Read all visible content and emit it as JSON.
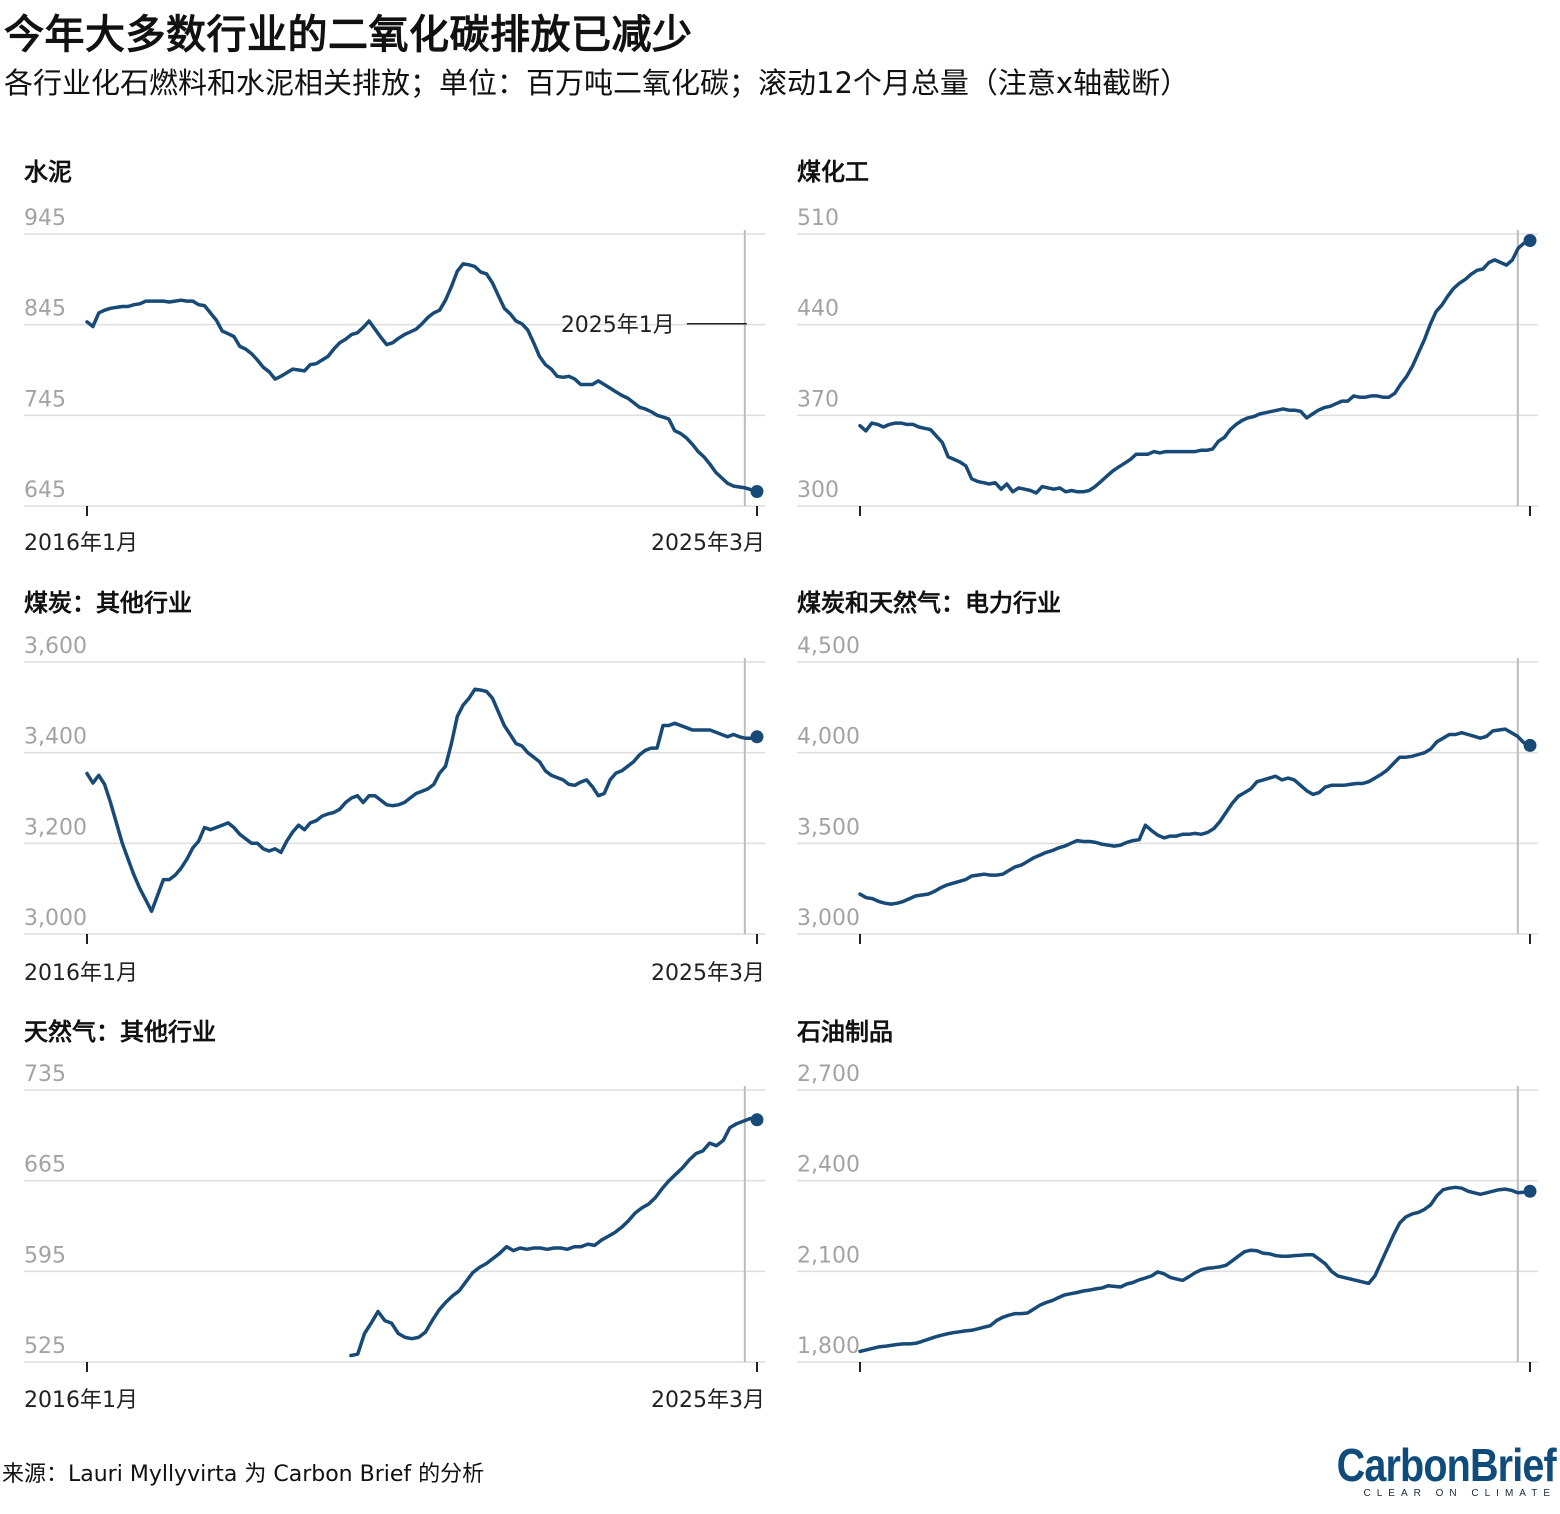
{
  "title": "今年大多数行业的二氧化碳排放已减少",
  "subtitle": "各行业化石燃料和水泥相关排放；单位：百万吨二氧化碳；滚动12个月总量（注意x轴截断）",
  "source": "来源：Lauri Myllyvirta 为 Carbon Brief 的分析",
  "logo": {
    "text": "CarbonBrief",
    "tagline": "CLEAR ON CLIMATE"
  },
  "colors": {
    "line": "#174a76",
    "grid": "#dedede",
    "tick_label": "#a3a3a3",
    "marker_line": "#bdbdbd"
  },
  "chart_data": [
    {
      "type": "line",
      "title": "水泥",
      "x_range": [
        "2016-01",
        "2025-03"
      ],
      "x_tick_labels": [
        "2016年1月",
        "2025年3月"
      ],
      "y_ticks": [
        "945",
        "845",
        "745",
        "645"
      ],
      "ylim": [
        645,
        945
      ],
      "vline": "2025-01",
      "annotation": "2025年1月",
      "values": [
        848,
        843,
        858,
        861,
        863,
        864,
        865,
        865,
        867,
        868,
        871,
        871,
        871,
        871,
        870,
        871,
        872,
        871,
        871,
        867,
        866,
        858,
        850,
        838,
        835,
        832,
        821,
        818,
        813,
        806,
        798,
        793,
        785,
        788,
        792,
        796,
        795,
        794,
        801,
        802,
        806,
        810,
        818,
        825,
        829,
        834,
        836,
        842,
        849,
        840,
        831,
        823,
        825,
        830,
        834,
        837,
        840,
        846,
        853,
        858,
        861,
        872,
        887,
        904,
        912,
        911,
        909,
        903,
        901,
        891,
        877,
        863,
        857,
        849,
        846,
        839,
        825,
        810,
        801,
        796,
        788,
        787,
        788,
        785,
        779,
        779,
        779,
        783,
        779,
        775,
        771,
        767,
        764,
        759,
        754,
        752,
        749,
        745,
        743,
        741,
        728,
        725,
        720,
        713,
        705,
        699,
        691,
        682,
        676,
        670,
        667,
        666,
        665,
        663,
        661
      ]
    },
    {
      "type": "line",
      "title": "煤化工",
      "x_range": [
        "2016-01",
        "2025-03"
      ],
      "x_tick_labels": [
        "",
        ""
      ],
      "y_ticks": [
        "510",
        "440",
        "370",
        "300"
      ],
      "ylim": [
        300,
        510
      ],
      "vline": "2025-01",
      "values": [
        362,
        358,
        364,
        363,
        361,
        363,
        364,
        364,
        363,
        363,
        361,
        360,
        359,
        354,
        349,
        338,
        336,
        334,
        331,
        321,
        319,
        318,
        317,
        318,
        313,
        317,
        311,
        314,
        313,
        312,
        310,
        315,
        314,
        313,
        314,
        311,
        312,
        311,
        311,
        312,
        315,
        319,
        323,
        327,
        330,
        333,
        336,
        340,
        340,
        340,
        342,
        341,
        342,
        342,
        342,
        342,
        342,
        342,
        343,
        343,
        344,
        350,
        353,
        359,
        363,
        366,
        368,
        369,
        371,
        372,
        373,
        374,
        375,
        374,
        374,
        373,
        368,
        371,
        374,
        376,
        377,
        379,
        381,
        381,
        385,
        384,
        384,
        385,
        385,
        384,
        384,
        387,
        394,
        400,
        408,
        418,
        428,
        440,
        450,
        455,
        462,
        468,
        472,
        475,
        479,
        482,
        483,
        488,
        490,
        488,
        486,
        490,
        499,
        503,
        505
      ]
    },
    {
      "type": "line",
      "title": "煤炭：其他行业",
      "x_range": [
        "2016-01",
        "2025-03"
      ],
      "x_tick_labels": [
        "2016年1月",
        "2025年3月"
      ],
      "y_ticks": [
        "3,600",
        "3,400",
        "3,200",
        "3,000"
      ],
      "ylim": [
        3000,
        3600
      ],
      "vline": "2025-01",
      "values": [
        3354,
        3333,
        3350,
        3330,
        3290,
        3245,
        3200,
        3165,
        3130,
        3100,
        3075,
        3050,
        3085,
        3120,
        3120,
        3130,
        3145,
        3165,
        3190,
        3205,
        3235,
        3230,
        3235,
        3240,
        3245,
        3235,
        3220,
        3210,
        3200,
        3200,
        3188,
        3183,
        3188,
        3180,
        3205,
        3225,
        3240,
        3230,
        3245,
        3250,
        3260,
        3265,
        3268,
        3275,
        3290,
        3300,
        3305,
        3290,
        3305,
        3305,
        3295,
        3285,
        3283,
        3285,
        3290,
        3300,
        3310,
        3315,
        3320,
        3330,
        3355,
        3370,
        3420,
        3480,
        3505,
        3520,
        3540,
        3538,
        3535,
        3520,
        3490,
        3460,
        3440,
        3420,
        3415,
        3400,
        3390,
        3380,
        3360,
        3350,
        3345,
        3340,
        3330,
        3328,
        3335,
        3340,
        3325,
        3305,
        3310,
        3340,
        3355,
        3360,
        3370,
        3380,
        3395,
        3405,
        3410,
        3410,
        3460,
        3460,
        3465,
        3460,
        3455,
        3450,
        3450,
        3450,
        3450,
        3445,
        3440,
        3435,
        3440,
        3435,
        3432,
        3432,
        3435
      ]
    },
    {
      "type": "line",
      "title": "煤炭和天然气：电力行业",
      "x_range": [
        "2016-01",
        "2025-03"
      ],
      "x_tick_labels": [
        "",
        ""
      ],
      "y_ticks": [
        "4,500",
        "4,000",
        "3,500",
        "3,000"
      ],
      "ylim": [
        3000,
        4500
      ],
      "vline": "2025-01",
      "values": [
        3220,
        3200,
        3195,
        3180,
        3170,
        3165,
        3170,
        3180,
        3195,
        3210,
        3215,
        3220,
        3235,
        3255,
        3270,
        3280,
        3290,
        3300,
        3320,
        3325,
        3330,
        3325,
        3325,
        3330,
        3350,
        3370,
        3380,
        3400,
        3420,
        3435,
        3450,
        3460,
        3475,
        3485,
        3500,
        3515,
        3510,
        3510,
        3505,
        3495,
        3490,
        3485,
        3490,
        3505,
        3515,
        3520,
        3600,
        3570,
        3545,
        3530,
        3540,
        3540,
        3550,
        3550,
        3555,
        3550,
        3560,
        3580,
        3620,
        3670,
        3720,
        3760,
        3780,
        3800,
        3840,
        3850,
        3860,
        3870,
        3850,
        3860,
        3850,
        3820,
        3790,
        3770,
        3780,
        3810,
        3820,
        3820,
        3820,
        3825,
        3830,
        3830,
        3840,
        3860,
        3880,
        3905,
        3940,
        3975,
        3975,
        3980,
        3990,
        4000,
        4020,
        4060,
        4080,
        4100,
        4100,
        4110,
        4100,
        4090,
        4080,
        4090,
        4120,
        4125,
        4130,
        4110,
        4090,
        4055,
        4040
      ]
    },
    {
      "type": "line",
      "title": "天然气：其他行业",
      "x_range": [
        "2016-01",
        "2025-03"
      ],
      "x_tick_labels": [
        "2016年1月",
        "2025年3月"
      ],
      "y_ticks": [
        "735",
        "665",
        "595",
        "525"
      ],
      "ylim": [
        525,
        735
      ],
      "vline": "2025-01",
      "start_index": 39,
      "values": [
        530,
        531,
        547,
        555,
        564,
        557,
        555,
        547,
        544,
        543,
        544,
        548,
        557,
        565,
        571,
        576,
        580,
        587,
        594,
        598,
        601,
        605,
        609,
        614,
        611,
        613,
        612,
        613,
        613,
        612,
        613,
        613,
        612,
        614,
        614,
        616,
        615,
        619,
        622,
        625,
        629,
        634,
        640,
        644,
        647,
        652,
        659,
        665,
        670,
        675,
        681,
        686,
        688,
        694,
        692,
        696,
        706,
        709,
        711,
        713,
        712
      ]
    },
    {
      "type": "line",
      "title": "石油制品",
      "x_range": [
        "2016-01",
        "2025-03"
      ],
      "x_tick_labels": [
        "",
        ""
      ],
      "y_ticks": [
        "2,700",
        "2,400",
        "2,100",
        "1,800"
      ],
      "ylim": [
        1800,
        2700
      ],
      "vline": "2025-01",
      "values": [
        1835,
        1840,
        1845,
        1850,
        1852,
        1855,
        1858,
        1860,
        1860,
        1862,
        1868,
        1875,
        1882,
        1888,
        1893,
        1897,
        1900,
        1903,
        1905,
        1910,
        1915,
        1920,
        1937,
        1948,
        1955,
        1960,
        1960,
        1962,
        1975,
        1988,
        1997,
        2003,
        2013,
        2022,
        2026,
        2030,
        2035,
        2038,
        2042,
        2045,
        2052,
        2050,
        2048,
        2058,
        2063,
        2072,
        2078,
        2085,
        2098,
        2092,
        2080,
        2075,
        2070,
        2082,
        2095,
        2105,
        2110,
        2112,
        2115,
        2120,
        2135,
        2150,
        2165,
        2170,
        2168,
        2160,
        2158,
        2152,
        2150,
        2150,
        2152,
        2153,
        2155,
        2155,
        2140,
        2125,
        2100,
        2085,
        2080,
        2075,
        2070,
        2065,
        2060,
        2085,
        2130,
        2175,
        2220,
        2260,
        2280,
        2290,
        2295,
        2305,
        2320,
        2350,
        2370,
        2375,
        2378,
        2375,
        2365,
        2360,
        2355,
        2360,
        2365,
        2370,
        2372,
        2368,
        2360,
        2362,
        2365
      ]
    }
  ]
}
